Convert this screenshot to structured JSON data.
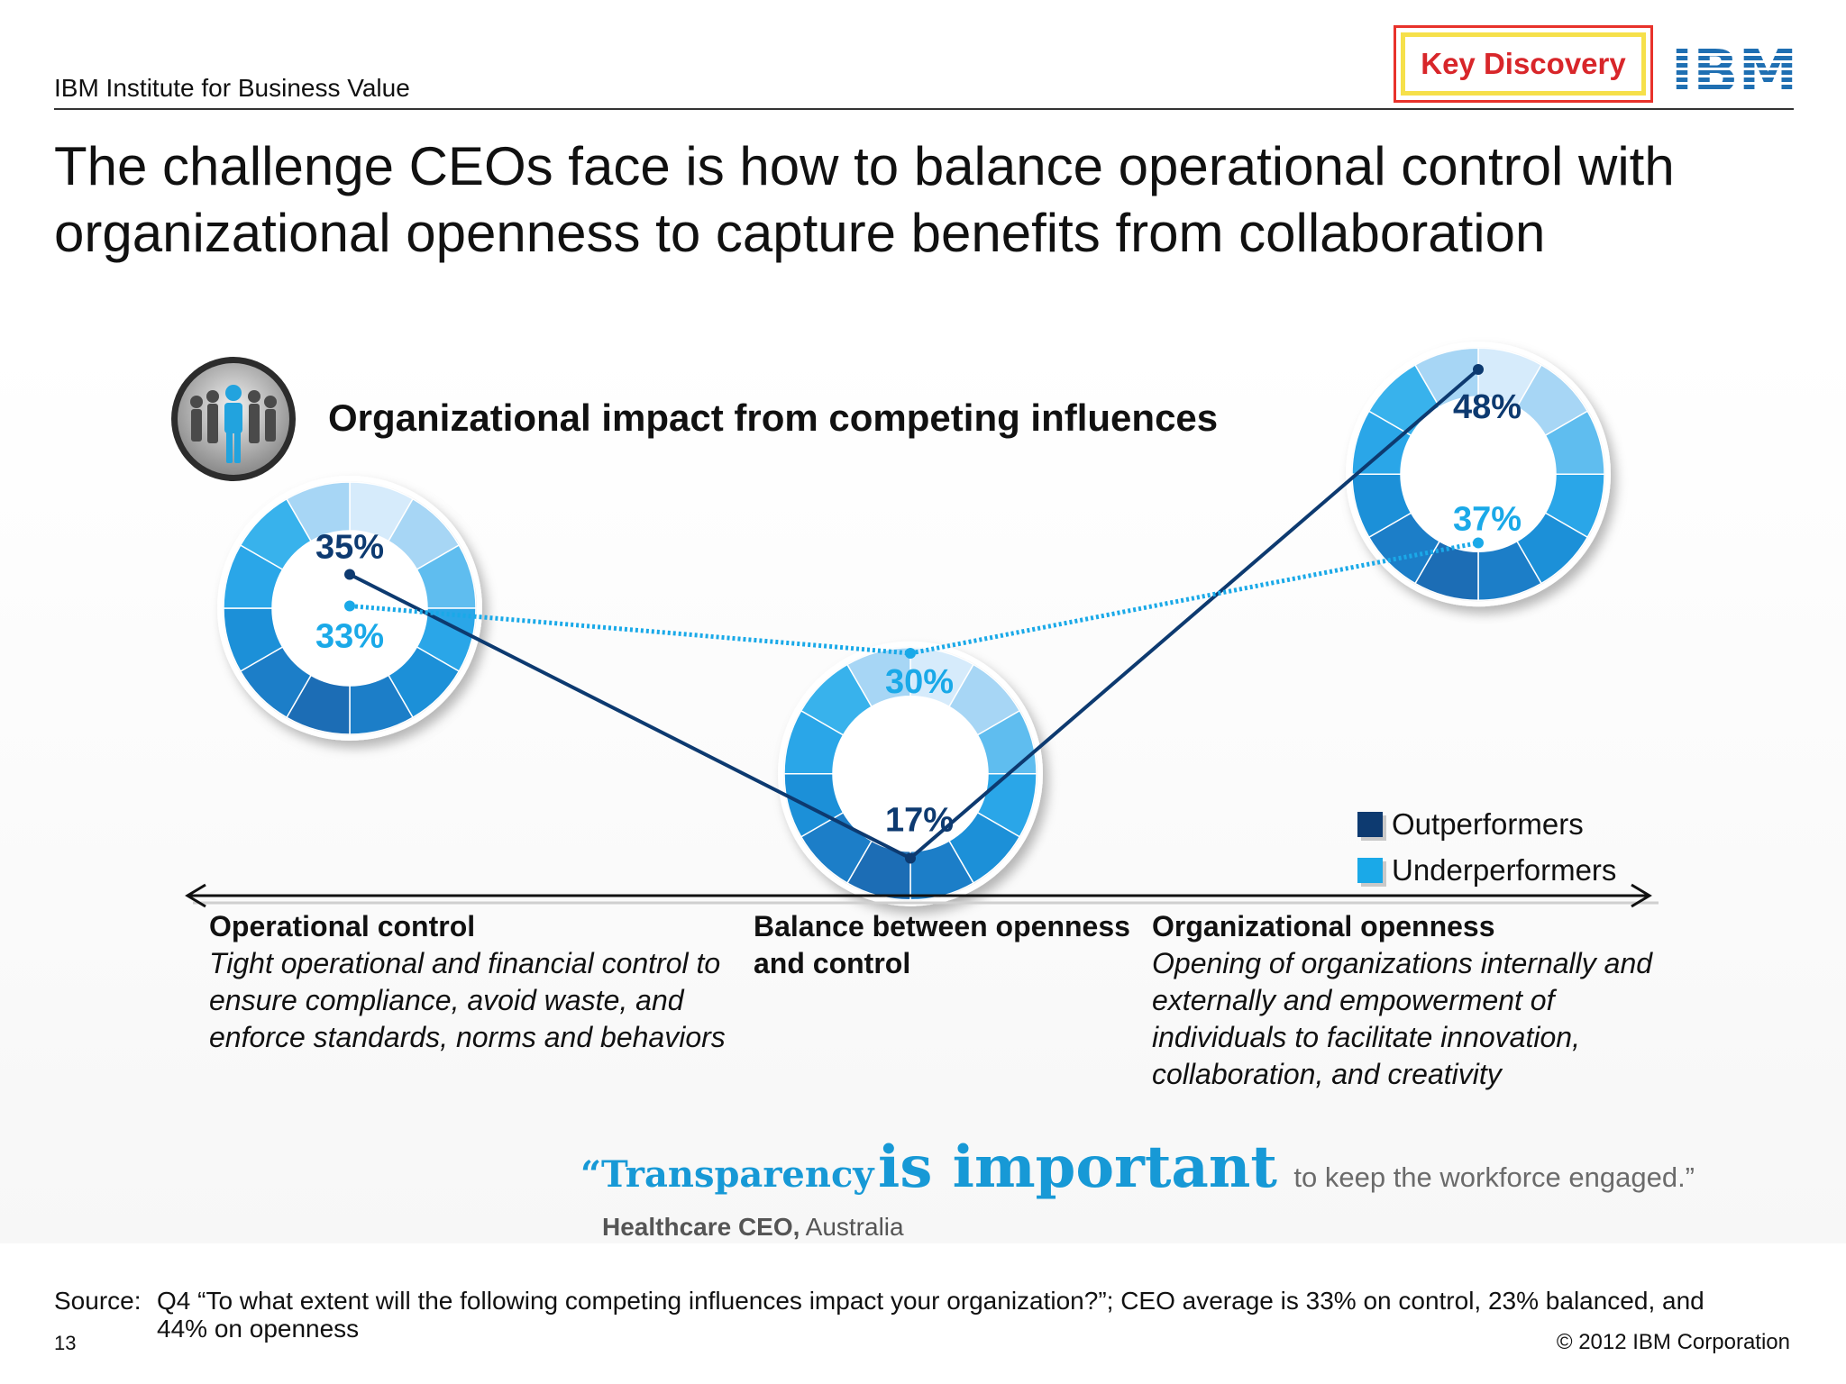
{
  "header": {
    "institute": "IBM Institute for Business Value",
    "badge": "Key Discovery",
    "logo_text": "IBM"
  },
  "page_title": "The challenge CEOs face is how to balance operational control with organizational openness to capture benefits from collaboration",
  "chart_data": {
    "type": "line",
    "title": "Organizational impact from competing influences",
    "categories": [
      "Operational control",
      "Balance between openness and control",
      "Organizational openness"
    ],
    "series": [
      {
        "name": "Outperformers",
        "values": [
          35,
          17,
          48
        ],
        "labels": [
          "35%",
          "17%",
          "48%"
        ],
        "color": "#0d3a70",
        "style": "solid"
      },
      {
        "name": "Underperformers",
        "values": [
          33,
          30,
          37
        ],
        "labels": [
          "33%",
          "30%",
          "37%"
        ],
        "color": "#1aa9e8",
        "style": "dotted"
      }
    ],
    "legend_position": "bottom-right",
    "grid": false
  },
  "axis": {
    "left": {
      "head": "Operational control",
      "body": "Tight operational and financial control to ensure compliance, avoid waste, and enforce standards, norms and behaviors"
    },
    "middle": {
      "head": "Balance between openness and control"
    },
    "right": {
      "head": "Organizational openness",
      "body": "Opening of organizations internally and externally and empowerment of individuals to facilitate innovation, collaboration, and creativity"
    }
  },
  "quote": {
    "open": "“Transparency",
    "emphasis": "is important",
    "tail": "to keep the workforce engaged.”",
    "attribution_bold": "Healthcare CEO,",
    "attribution_rest": "Australia"
  },
  "footer": {
    "source_label": "Source:",
    "source_text": "Q4 “To what extent will the following competing influences impact your organization?”; CEO average is 33% on control, 23% balanced, and 44% on openness",
    "page_number": "13",
    "copyright": "© 2012 IBM Corporation"
  },
  "colors": {
    "outperformers": "#0d3a70",
    "underperformers": "#1aa9e8",
    "badge_border": "#e8322b",
    "badge_fill": "#f6e04a",
    "badge_text": "#d8262a",
    "ibm_blue": "#1f6fb2"
  }
}
